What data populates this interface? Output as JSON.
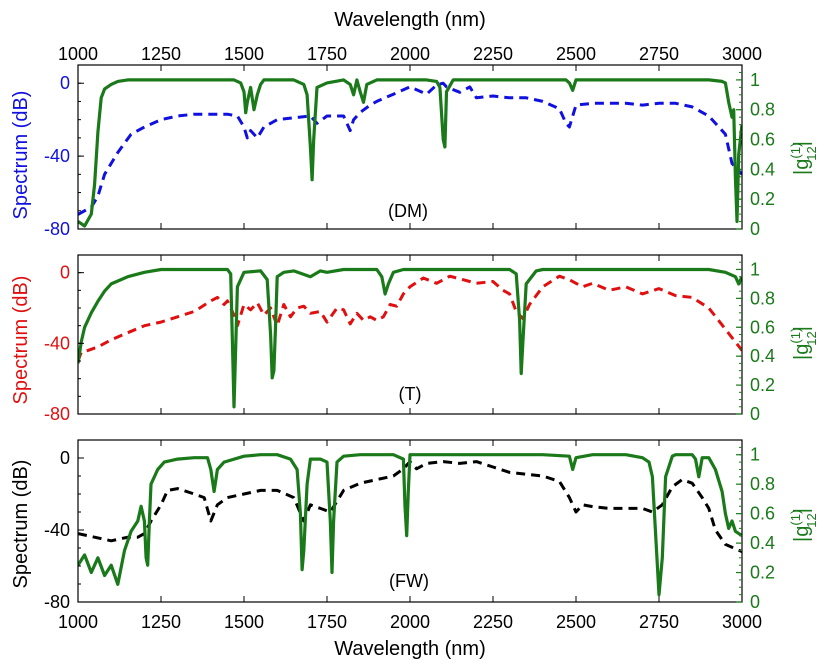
{
  "chart_data": {
    "type": "line",
    "x_axis": {
      "label": "Wavelength (nm)",
      "range": [
        1000,
        3000
      ],
      "ticks": [
        "1000",
        "1250",
        "1500",
        "1750",
        "2000",
        "2250",
        "2500",
        "2750",
        "3000"
      ]
    },
    "left_axis": {
      "range": [
        -80,
        10
      ],
      "ticks": [
        "0",
        "-40",
        "-80"
      ]
    },
    "right_axis": {
      "range": [
        0,
        1.1
      ],
      "ticks": [
        "0",
        "0.2",
        "0.4",
        "0.6",
        "0.8",
        "1"
      ]
    },
    "right_label_main": "|g",
    "right_label_sup": "(1)",
    "right_label_sub": "12",
    "right_label_end": "|",
    "colors": {
      "coherence": "#1a7a1a",
      "spectrum_dm": "#1010e0",
      "spectrum_t": "#e01010",
      "spectrum_fw": "#000000",
      "axis": "#000000"
    },
    "panels": [
      {
        "label": "(DM)",
        "ylabel": "Spectrum (dB)",
        "spectrum_color": "#1010e0",
        "spectrum": {
          "x": [
            1000,
            1040,
            1060,
            1080,
            1120,
            1160,
            1200,
            1250,
            1300,
            1350,
            1400,
            1450,
            1480,
            1500,
            1510,
            1520,
            1540,
            1560,
            1600,
            1650,
            1700,
            1720,
            1750,
            1800,
            1820,
            1830,
            1850,
            1880,
            1900,
            1950,
            2000,
            2050,
            2080,
            2100,
            2110,
            2150,
            2180,
            2200,
            2250,
            2300,
            2350,
            2400,
            2450,
            2470,
            2480,
            2490,
            2500,
            2550,
            2600,
            2650,
            2700,
            2750,
            2800,
            2850,
            2900,
            2950,
            2970,
            3000
          ],
          "y": [
            -72,
            -68,
            -62,
            -50,
            -38,
            -28,
            -24,
            -20,
            -18,
            -17,
            -17,
            -17,
            -18,
            -24,
            -30,
            -26,
            -30,
            -24,
            -20,
            -19,
            -18,
            -22,
            -18,
            -18,
            -26,
            -20,
            -16,
            -12,
            -10,
            -6,
            -2,
            -6,
            -1,
            0,
            -2,
            -5,
            -2,
            -8,
            -7,
            -8,
            -8,
            -10,
            -14,
            -22,
            -24,
            -18,
            -12,
            -11,
            -11,
            -11,
            -12,
            -11,
            -11,
            -13,
            -18,
            -28,
            -44,
            -50
          ]
        },
        "coherence": {
          "x": [
            1000,
            1020,
            1040,
            1050,
            1060,
            1070,
            1080,
            1100,
            1120,
            1150,
            1200,
            1300,
            1400,
            1470,
            1490,
            1500,
            1505,
            1510,
            1520,
            1530,
            1540,
            1550,
            1560,
            1600,
            1650,
            1680,
            1690,
            1700,
            1705,
            1710,
            1720,
            1750,
            1800,
            1820,
            1830,
            1840,
            1850,
            1860,
            1870,
            1900,
            1950,
            2000,
            2050,
            2080,
            2090,
            2100,
            2105,
            2110,
            2130,
            2150,
            2200,
            2300,
            2400,
            2450,
            2470,
            2480,
            2490,
            2500,
            2600,
            2700,
            2800,
            2900,
            2940,
            2950,
            2960,
            2970,
            2975,
            2980,
            2985,
            2990,
            3000
          ],
          "y": [
            0.05,
            0.02,
            0.1,
            0.3,
            0.65,
            0.88,
            0.94,
            0.97,
            0.99,
            1,
            1,
            1,
            1,
            1,
            0.98,
            0.92,
            0.78,
            0.85,
            0.95,
            0.8,
            0.9,
            0.97,
            1,
            1,
            1,
            0.97,
            0.9,
            0.55,
            0.33,
            0.6,
            0.95,
            0.98,
            1,
            0.97,
            0.9,
            1,
            0.92,
            0.85,
            0.97,
            1,
            1,
            1,
            1,
            0.99,
            0.95,
            0.6,
            0.55,
            0.92,
            1,
            1,
            1,
            1,
            1,
            1,
            1,
            0.98,
            0.93,
            1,
            1,
            1,
            1,
            1,
            0.99,
            0.98,
            0.85,
            0.75,
            0.8,
            0.35,
            0.05,
            0.5,
            0.7
          ]
        }
      },
      {
        "label": "(T)",
        "ylabel": "Spectrum (dB)",
        "spectrum_color": "#e01010",
        "spectrum": {
          "x": [
            1000,
            1010,
            1030,
            1060,
            1100,
            1150,
            1200,
            1250,
            1300,
            1350,
            1400,
            1420,
            1440,
            1450,
            1470,
            1480,
            1500,
            1520,
            1540,
            1560,
            1580,
            1600,
            1620,
            1640,
            1660,
            1680,
            1700,
            1730,
            1750,
            1780,
            1800,
            1820,
            1840,
            1860,
            1880,
            1900,
            1920,
            1940,
            1960,
            1980,
            2000,
            2040,
            2080,
            2120,
            2160,
            2200,
            2250,
            2280,
            2300,
            2320,
            2340,
            2360,
            2400,
            2450,
            2480,
            2500,
            2520,
            2550,
            2600,
            2650,
            2700,
            2750,
            2800,
            2850,
            2900,
            2950,
            3000
          ],
          "y": [
            -50,
            -45,
            -44,
            -42,
            -38,
            -34,
            -30,
            -28,
            -25,
            -22,
            -16,
            -14,
            -18,
            -16,
            -24,
            -30,
            -18,
            -21,
            -17,
            -24,
            -20,
            -30,
            -18,
            -25,
            -20,
            -19,
            -23,
            -22,
            -28,
            -20,
            -21,
            -29,
            -23,
            -27,
            -25,
            -27,
            -25,
            -18,
            -19,
            -12,
            -8,
            -3,
            -6,
            -2,
            -4,
            -6,
            -5,
            -10,
            -12,
            -22,
            -26,
            -18,
            -8,
            -2,
            -4,
            -6,
            -8,
            -6,
            -10,
            -8,
            -12,
            -9,
            -13,
            -14,
            -20,
            -32,
            -44
          ]
        },
        "coherence": {
          "x": [
            1000,
            1010,
            1020,
            1040,
            1060,
            1080,
            1100,
            1150,
            1200,
            1250,
            1300,
            1400,
            1450,
            1460,
            1465,
            1470,
            1480,
            1500,
            1550,
            1570,
            1580,
            1585,
            1590,
            1595,
            1600,
            1620,
            1650,
            1700,
            1730,
            1750,
            1800,
            1850,
            1900,
            1915,
            1925,
            1935,
            1950,
            1980,
            2000,
            2050,
            2100,
            2200,
            2300,
            2320,
            2330,
            2335,
            2340,
            2350,
            2380,
            2400,
            2500,
            2600,
            2700,
            2800,
            2900,
            2950,
            2980,
            2990,
            3000
          ],
          "y": [
            0.35,
            0.5,
            0.6,
            0.7,
            0.78,
            0.85,
            0.9,
            0.95,
            0.98,
            1,
            1,
            1,
            1,
            0.97,
            0.5,
            0.05,
            0.88,
            0.98,
            0.99,
            0.93,
            0.55,
            0.25,
            0.3,
            0.6,
            0.95,
            0.98,
            0.99,
            0.95,
            0.99,
            0.98,
            1,
            1,
            1,
            0.95,
            0.83,
            0.9,
            0.98,
            1,
            1,
            1,
            1,
            1,
            1,
            0.97,
            0.65,
            0.28,
            0.5,
            0.9,
            0.99,
            1,
            1,
            1,
            1,
            1,
            1,
            0.98,
            0.95,
            0.9,
            0.95
          ]
        }
      },
      {
        "label": "(FW)",
        "ylabel": "Spectrum (dB)",
        "spectrum_color": "#000000",
        "spectrum": {
          "x": [
            1000,
            1050,
            1100,
            1150,
            1180,
            1200,
            1220,
            1250,
            1270,
            1300,
            1350,
            1380,
            1400,
            1420,
            1450,
            1500,
            1550,
            1600,
            1650,
            1680,
            1700,
            1730,
            1760,
            1780,
            1800,
            1850,
            1900,
            1950,
            1980,
            2000,
            2020,
            2050,
            2100,
            2150,
            2200,
            2250,
            2300,
            2350,
            2400,
            2450,
            2480,
            2500,
            2520,
            2550,
            2600,
            2650,
            2700,
            2730,
            2760,
            2790,
            2820,
            2850,
            2880,
            2900,
            2920,
            2950,
            3000
          ],
          "y": [
            -42,
            -44,
            -46,
            -44,
            -44,
            -42,
            -35,
            -26,
            -18,
            -17,
            -20,
            -22,
            -35,
            -26,
            -22,
            -20,
            -18,
            -18,
            -22,
            -35,
            -26,
            -28,
            -30,
            -24,
            -18,
            -14,
            -12,
            -10,
            -6,
            -2,
            -6,
            -3,
            -2,
            -3,
            -2,
            -5,
            -8,
            -9,
            -10,
            -13,
            -22,
            -30,
            -26,
            -27,
            -28,
            -28,
            -28,
            -30,
            -26,
            -16,
            -12,
            -14,
            -22,
            -28,
            -40,
            -48,
            -52
          ]
        },
        "coherence": {
          "x": [
            1000,
            1020,
            1040,
            1060,
            1080,
            1100,
            1120,
            1140,
            1160,
            1180,
            1190,
            1200,
            1205,
            1210,
            1215,
            1220,
            1240,
            1260,
            1300,
            1350,
            1390,
            1400,
            1410,
            1420,
            1440,
            1500,
            1550,
            1600,
            1640,
            1660,
            1670,
            1675,
            1680,
            1690,
            1700,
            1730,
            1750,
            1760,
            1765,
            1770,
            1780,
            1800,
            1850,
            1900,
            1950,
            1980,
            1985,
            1990,
            1995,
            2000,
            2050,
            2100,
            2200,
            2300,
            2400,
            2480,
            2490,
            2500,
            2550,
            2600,
            2650,
            2700,
            2720,
            2730,
            2740,
            2750,
            2760,
            2770,
            2790,
            2800,
            2850,
            2860,
            2870,
            2880,
            2900,
            2920,
            2940,
            2950,
            2960,
            2970,
            2980,
            3000
          ],
          "y": [
            0.25,
            0.32,
            0.2,
            0.3,
            0.18,
            0.25,
            0.12,
            0.35,
            0.48,
            0.55,
            0.65,
            0.55,
            0.3,
            0.25,
            0.55,
            0.8,
            0.9,
            0.95,
            0.97,
            0.98,
            0.98,
            0.9,
            0.75,
            0.9,
            0.95,
            0.99,
            1,
            1,
            0.97,
            0.9,
            0.6,
            0.22,
            0.35,
            0.8,
            0.97,
            0.97,
            0.95,
            0.55,
            0.2,
            0.55,
            0.95,
            0.99,
            1,
            1,
            1,
            0.97,
            0.65,
            0.45,
            0.75,
            1,
            1,
            1,
            1,
            1,
            1,
            0.99,
            0.9,
            0.98,
            1,
            1,
            1,
            0.98,
            0.95,
            0.85,
            0.45,
            0.05,
            0.3,
            0.85,
            0.99,
            1,
            1,
            0.97,
            0.85,
            0.98,
            0.98,
            0.9,
            0.75,
            0.6,
            0.5,
            0.55,
            0.48,
            0.45
          ]
        }
      }
    ]
  }
}
